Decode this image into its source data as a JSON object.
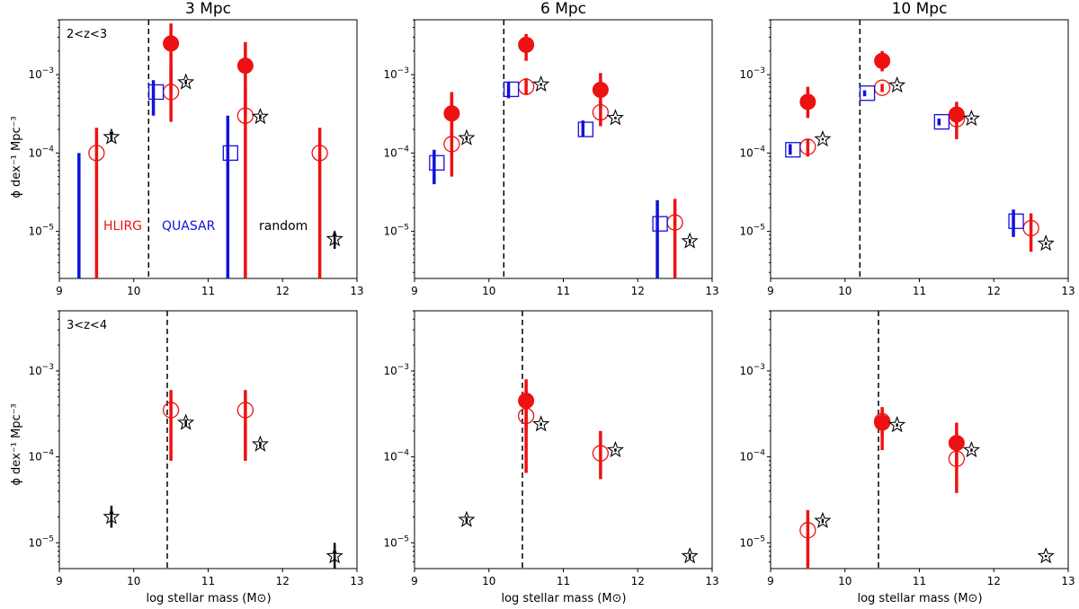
{
  "figure": {
    "ylabel": "ϕ dex⁻¹ Mpc⁻³",
    "xlabel": "log stellar mass (M⊙)",
    "legend": {
      "hlirg": "HLIRG",
      "quasar": "QUASAR",
      "random": "random"
    },
    "colors": {
      "hlirg": "#ee1111",
      "quasar": "#1111dd",
      "random": "#000000"
    }
  },
  "chart_data": [
    {
      "type": "scatter",
      "title": "3 Mpc",
      "zlabel": "2<z<3",
      "xlim": [
        9,
        13
      ],
      "ylim_log10": [
        -5.6,
        -2.3
      ],
      "mass_cut": 10.2,
      "series": [
        {
          "name": "HLIRG",
          "marker": "open-circle",
          "points": [
            {
              "x": 9.5,
              "y": 0.0001,
              "lo": 2.5e-06,
              "hi": 0.00021
            },
            {
              "x": 10.5,
              "y": 0.0006,
              "lo": 0.00025,
              "hi": 0.0013
            },
            {
              "x": 11.5,
              "y": 0.0003,
              "lo": 2.5e-06,
              "hi": 0.00065
            },
            {
              "x": 12.5,
              "y": 0.0001,
              "lo": 2.5e-06,
              "hi": 0.00021
            }
          ]
        },
        {
          "name": "HLIRG filled",
          "marker": "filled-circle",
          "points": [
            {
              "x": 10.5,
              "y": 0.0025,
              "lo": 0.0006,
              "hi": 0.0045
            },
            {
              "x": 11.5,
              "y": 0.0013,
              "lo": 0.0003,
              "hi": 0.0026
            }
          ]
        },
        {
          "name": "QUASAR",
          "marker": "open-square",
          "points": [
            {
              "x": 9.3,
              "y": null,
              "lo": 2.5e-06,
              "hi": 0.0001
            },
            {
              "x": 10.3,
              "y": 0.0006,
              "lo": 0.0003,
              "hi": 0.00085
            },
            {
              "x": 11.3,
              "y": 0.0001,
              "lo": 2.5e-06,
              "hi": 0.0003
            }
          ]
        },
        {
          "name": "random",
          "marker": "star",
          "points": [
            {
              "x": 9.7,
              "y": 0.00016,
              "lo": 0.00014,
              "hi": 0.000185
            },
            {
              "x": 10.7,
              "y": 0.0008,
              "lo": 0.00075,
              "hi": 0.00086
            },
            {
              "x": 11.7,
              "y": 0.00029,
              "lo": 0.00027,
              "hi": 0.00031
            },
            {
              "x": 12.7,
              "y": 8e-06,
              "lo": 6e-06,
              "hi": 1e-05
            }
          ]
        }
      ]
    },
    {
      "type": "scatter",
      "title": "6 Mpc",
      "zlabel": "",
      "xlim": [
        9,
        13
      ],
      "ylim_log10": [
        -5.6,
        -2.3
      ],
      "mass_cut": 10.2,
      "series": [
        {
          "name": "HLIRG",
          "marker": "open-circle",
          "points": [
            {
              "x": 9.5,
              "y": 0.00013,
              "lo": 5e-05,
              "hi": 0.00055
            },
            {
              "x": 10.5,
              "y": 0.0007,
              "lo": 0.00055,
              "hi": 0.0009
            },
            {
              "x": 11.5,
              "y": 0.00033,
              "lo": 0.00022,
              "hi": 0.00045
            },
            {
              "x": 12.5,
              "y": 1.3e-05,
              "lo": 2.5e-06,
              "hi": 2.6e-05
            }
          ]
        },
        {
          "name": "HLIRG filled",
          "marker": "filled-circle",
          "points": [
            {
              "x": 9.5,
              "y": 0.00032,
              "lo": 0.00016,
              "hi": 0.0006
            },
            {
              "x": 10.5,
              "y": 0.0024,
              "lo": 0.0015,
              "hi": 0.0033
            },
            {
              "x": 11.5,
              "y": 0.00064,
              "lo": 0.00038,
              "hi": 0.00105
            }
          ]
        },
        {
          "name": "QUASAR",
          "marker": "open-square",
          "points": [
            {
              "x": 9.3,
              "y": 7.5e-05,
              "lo": 4e-05,
              "hi": 0.00011
            },
            {
              "x": 10.3,
              "y": 0.00065,
              "lo": 0.0005,
              "hi": 0.0008
            },
            {
              "x": 11.3,
              "y": 0.0002,
              "lo": 0.00016,
              "hi": 0.00026
            },
            {
              "x": 12.3,
              "y": 1.25e-05,
              "lo": 2.5e-06,
              "hi": 2.5e-05
            }
          ]
        },
        {
          "name": "random",
          "marker": "star",
          "points": [
            {
              "x": 9.7,
              "y": 0.000155,
              "lo": 0.000145,
              "hi": 0.000165
            },
            {
              "x": 10.7,
              "y": 0.00075,
              "lo": 0.00072,
              "hi": 0.00078
            },
            {
              "x": 11.7,
              "y": 0.00028,
              "lo": 0.00027,
              "hi": 0.00029
            },
            {
              "x": 12.7,
              "y": 7.5e-06,
              "lo": 7e-06,
              "hi": 8e-06
            }
          ]
        }
      ]
    },
    {
      "type": "scatter",
      "title": "10 Mpc",
      "zlabel": "",
      "xlim": [
        9,
        13
      ],
      "ylim_log10": [
        -5.6,
        -2.3
      ],
      "mass_cut": 10.2,
      "series": [
        {
          "name": "HLIRG",
          "marker": "open-circle",
          "points": [
            {
              "x": 9.5,
              "y": 0.00012,
              "lo": 9e-05,
              "hi": 0.00015
            },
            {
              "x": 10.5,
              "y": 0.00068,
              "lo": 0.0006,
              "hi": 0.00076
            },
            {
              "x": 11.5,
              "y": 0.00027,
              "lo": 0.00015,
              "hi": 0.0004
            },
            {
              "x": 12.5,
              "y": 1.1e-05,
              "lo": 5.5e-06,
              "hi": 1.7e-05
            }
          ]
        },
        {
          "name": "HLIRG filled",
          "marker": "filled-circle",
          "points": [
            {
              "x": 9.5,
              "y": 0.00045,
              "lo": 0.00028,
              "hi": 0.0007
            },
            {
              "x": 10.5,
              "y": 0.0015,
              "lo": 0.0011,
              "hi": 0.002
            },
            {
              "x": 11.5,
              "y": 0.00031,
              "lo": 0.00024,
              "hi": 0.00045
            }
          ]
        },
        {
          "name": "QUASAR",
          "marker": "open-square",
          "points": [
            {
              "x": 9.3,
              "y": 0.00011,
              "lo": 9.5e-05,
              "hi": 0.00013
            },
            {
              "x": 10.3,
              "y": 0.00058,
              "lo": 0.00053,
              "hi": 0.00063
            },
            {
              "x": 11.3,
              "y": 0.00025,
              "lo": 0.000225,
              "hi": 0.000275
            },
            {
              "x": 12.3,
              "y": 1.35e-05,
              "lo": 8.5e-06,
              "hi": 1.9e-05
            }
          ]
        },
        {
          "name": "random",
          "marker": "star",
          "points": [
            {
              "x": 9.7,
              "y": 0.00015,
              "lo": 0.000145,
              "hi": 0.000155
            },
            {
              "x": 10.7,
              "y": 0.00073,
              "lo": 0.00071,
              "hi": 0.00075
            },
            {
              "x": 11.7,
              "y": 0.000275,
              "lo": 0.000265,
              "hi": 0.000285
            },
            {
              "x": 12.7,
              "y": 7e-06,
              "lo": 6.7e-06,
              "hi": 7.3e-06
            }
          ]
        }
      ]
    },
    {
      "type": "scatter",
      "title": "",
      "zlabel": "3<z<4",
      "xlim": [
        9,
        13
      ],
      "ylim_log10": [
        -5.3,
        -2.3
      ],
      "mass_cut": 10.45,
      "series": [
        {
          "name": "HLIRG",
          "marker": "open-circle",
          "points": [
            {
              "x": 10.5,
              "y": 0.00035,
              "lo": 9e-05,
              "hi": 0.0006
            },
            {
              "x": 11.5,
              "y": 0.00035,
              "lo": 9e-05,
              "hi": 0.0006
            }
          ]
        },
        {
          "name": "random",
          "marker": "star",
          "points": [
            {
              "x": 9.7,
              "y": 2e-05,
              "lo": 1.5e-05,
              "hi": 2.7e-05
            },
            {
              "x": 10.7,
              "y": 0.00025,
              "lo": 0.00023,
              "hi": 0.00027
            },
            {
              "x": 11.7,
              "y": 0.00014,
              "lo": 0.00013,
              "hi": 0.00015
            },
            {
              "x": 12.7,
              "y": 7e-06,
              "lo": 5e-06,
              "hi": 1e-05
            }
          ]
        }
      ]
    },
    {
      "type": "scatter",
      "title": "",
      "zlabel": "",
      "xlim": [
        9,
        13
      ],
      "ylim_log10": [
        -5.3,
        -2.3
      ],
      "mass_cut": 10.45,
      "series": [
        {
          "name": "HLIRG",
          "marker": "open-circle",
          "points": [
            {
              "x": 10.5,
              "y": 0.0003,
              "lo": 6.5e-05,
              "hi": 0.0006
            },
            {
              "x": 11.5,
              "y": 0.00011,
              "lo": 5.5e-05,
              "hi": 0.0002
            }
          ]
        },
        {
          "name": "HLIRG filled",
          "marker": "filled-circle",
          "points": [
            {
              "x": 10.5,
              "y": 0.00045,
              "lo": 0.0002,
              "hi": 0.0008
            }
          ]
        },
        {
          "name": "random",
          "marker": "star",
          "points": [
            {
              "x": 9.7,
              "y": 1.85e-05,
              "lo": 1.7e-05,
              "hi": 2e-05
            },
            {
              "x": 10.7,
              "y": 0.00024,
              "lo": 0.00023,
              "hi": 0.00025
            },
            {
              "x": 11.7,
              "y": 0.00012,
              "lo": 0.000115,
              "hi": 0.000125
            },
            {
              "x": 12.7,
              "y": 7e-06,
              "lo": 6.5e-06,
              "hi": 7.5e-06
            }
          ]
        }
      ]
    },
    {
      "type": "scatter",
      "title": "",
      "zlabel": "",
      "xlim": [
        9,
        13
      ],
      "ylim_log10": [
        -5.3,
        -2.3
      ],
      "mass_cut": 10.45,
      "series": [
        {
          "name": "HLIRG",
          "marker": "open-circle",
          "points": [
            {
              "x": 9.5,
              "y": 1.4e-05,
              "lo": 3.5e-06,
              "hi": 2.4e-05
            },
            {
              "x": 10.5,
              "y": 0.00026,
              "lo": 0.00018,
              "hi": 0.00035
            },
            {
              "x": 11.5,
              "y": 9.5e-05,
              "lo": 3.8e-05,
              "hi": 0.00016
            }
          ]
        },
        {
          "name": "HLIRG filled",
          "marker": "filled-circle",
          "points": [
            {
              "x": 10.5,
              "y": 0.00025,
              "lo": 0.00012,
              "hi": 0.00038
            },
            {
              "x": 11.5,
              "y": 0.000145,
              "lo": 8e-05,
              "hi": 0.00025
            }
          ]
        },
        {
          "name": "random",
          "marker": "star",
          "points": [
            {
              "x": 9.7,
              "y": 1.8e-05,
              "lo": 1.7e-05,
              "hi": 1.9e-05
            },
            {
              "x": 10.7,
              "y": 0.000235,
              "lo": 0.000225,
              "hi": 0.000245
            },
            {
              "x": 11.7,
              "y": 0.00012,
              "lo": 0.000115,
              "hi": 0.000125
            },
            {
              "x": 12.7,
              "y": 7e-06,
              "lo": 6.8e-06,
              "hi": 7.2e-06
            }
          ]
        }
      ]
    }
  ]
}
